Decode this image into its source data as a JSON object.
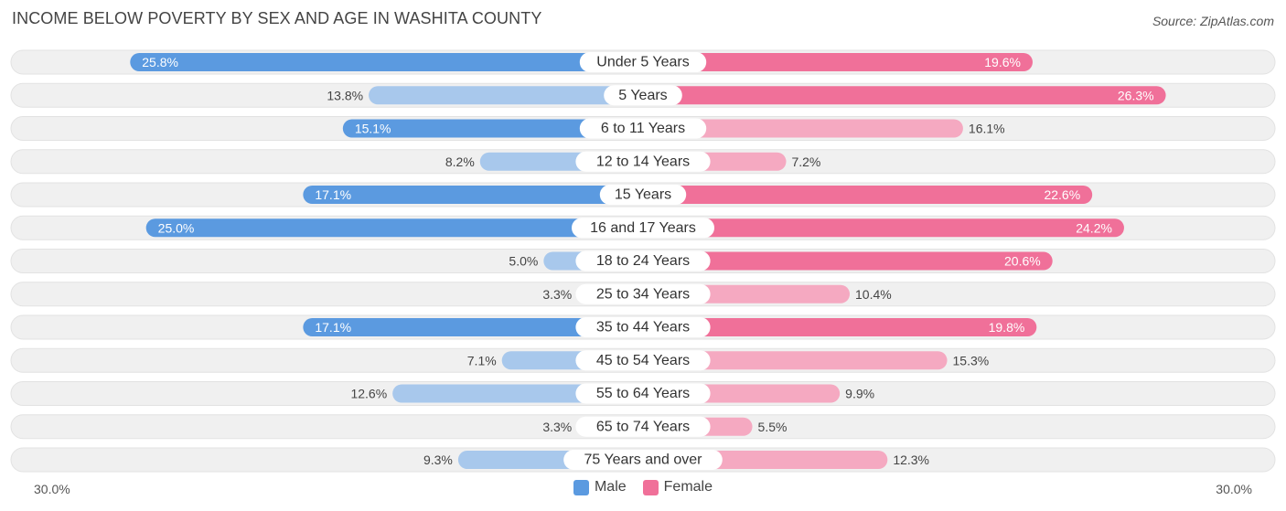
{
  "header": {
    "title": "INCOME BELOW POVERTY BY SEX AND AGE IN WASHITA COUNTY",
    "source": "Source: ZipAtlas.com"
  },
  "axis": {
    "left_label": "30.0%",
    "right_label": "30.0%"
  },
  "legend": {
    "male_label": "Male",
    "female_label": "Female"
  },
  "colors": {
    "male_strong": "#5b9ae0",
    "male_light": "#a8c8ec",
    "female_strong": "#f07099",
    "female_light": "#f5a9c1",
    "track": "#f0f0f0",
    "label_bg": "#ffffff"
  },
  "chart_data": {
    "type": "bar",
    "orientation": "horizontal-diverging",
    "title": "INCOME BELOW POVERTY BY SEX AND AGE IN WASHITA COUNTY",
    "xlim": [
      0,
      30
    ],
    "unit": "%",
    "categories": [
      "Under 5 Years",
      "5 Years",
      "6 to 11 Years",
      "12 to 14 Years",
      "15 Years",
      "16 and 17 Years",
      "18 to 24 Years",
      "25 to 34 Years",
      "35 to 44 Years",
      "45 to 54 Years",
      "55 to 64 Years",
      "65 to 74 Years",
      "75 Years and over"
    ],
    "series": [
      {
        "name": "Male",
        "values": [
          25.8,
          13.8,
          15.1,
          8.2,
          17.1,
          25.0,
          5.0,
          3.3,
          17.1,
          7.1,
          12.6,
          3.3,
          9.3
        ]
      },
      {
        "name": "Female",
        "values": [
          19.6,
          26.3,
          16.1,
          7.2,
          22.6,
          24.2,
          20.6,
          10.4,
          19.8,
          15.3,
          9.9,
          5.5,
          12.3
        ]
      }
    ],
    "value_labels": {
      "male": [
        "25.8%",
        "13.8%",
        "15.1%",
        "8.2%",
        "17.1%",
        "25.0%",
        "5.0%",
        "3.3%",
        "17.1%",
        "7.1%",
        "12.6%",
        "3.3%",
        "9.3%"
      ],
      "female": [
        "19.6%",
        "26.3%",
        "16.1%",
        "7.2%",
        "22.6%",
        "24.2%",
        "20.6%",
        "10.4%",
        "19.8%",
        "15.3%",
        "9.9%",
        "5.5%",
        "12.3%"
      ]
    }
  }
}
